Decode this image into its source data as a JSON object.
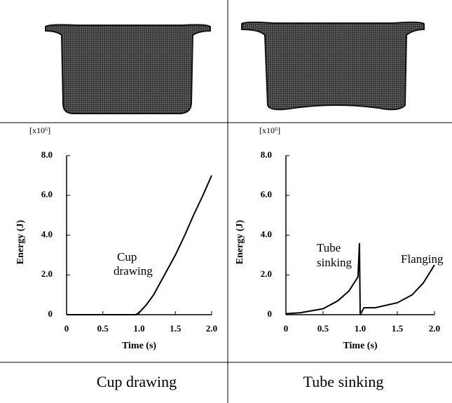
{
  "chart_data": [
    {
      "type": "line",
      "multiplier": "[x10⁶]",
      "xlabel": "Time (s)",
      "ylabel": "Energy (J)",
      "annotations": [
        [
          "Cup",
          "drawing"
        ]
      ],
      "x": [
        0,
        0.5,
        0.95,
        1.0,
        1.1,
        1.2,
        1.35,
        1.5,
        1.63,
        1.75,
        1.88,
        2.0
      ],
      "values": [
        0,
        0,
        0,
        0.1,
        0.5,
        1.0,
        2.0,
        3.0,
        4.0,
        5.0,
        6.0,
        7.0
      ],
      "color": "#000000",
      "xlim": [
        0,
        2
      ],
      "ylim": [
        0,
        8
      ],
      "xticks": [
        0,
        0.5,
        {
          "value": 1,
          "label": "1.0"
        },
        1.5,
        {
          "value": 2,
          "label": "2.0"
        }
      ],
      "yticks": [
        0,
        {
          "value": 2,
          "label": "2.0"
        },
        {
          "value": 4,
          "label": "4.0"
        },
        {
          "value": 6,
          "label": "6.0"
        },
        {
          "value": 8,
          "label": "8.0"
        }
      ]
    },
    {
      "type": "line",
      "multiplier": "[x10⁶]",
      "xlabel": "Time (s)",
      "ylabel": "Energy (J)",
      "annotations": [
        [
          "Tube",
          "sinking"
        ],
        [
          "Flanging"
        ]
      ],
      "x": [
        0,
        0.2,
        0.5,
        0.7,
        0.85,
        0.97,
        0.99,
        1.0,
        1.05,
        1.2,
        1.5,
        1.7,
        1.85,
        2.0
      ],
      "values": [
        0.05,
        0.1,
        0.3,
        0.7,
        1.2,
        1.9,
        3.6,
        0,
        0.35,
        0.35,
        0.6,
        1.0,
        1.6,
        2.5
      ],
      "color": "#000000",
      "xlim": [
        0,
        2
      ],
      "ylim": [
        0,
        8
      ],
      "xticks": [
        0,
        0.5,
        {
          "value": 1,
          "label": "1.0"
        },
        1.5,
        {
          "value": 2,
          "label": "2.0"
        }
      ],
      "yticks": [
        0,
        {
          "value": 2,
          "label": "2.0"
        },
        {
          "value": 4,
          "label": "4.0"
        },
        {
          "value": 6,
          "label": "6.0"
        },
        {
          "value": 8,
          "label": "8.0"
        }
      ]
    }
  ],
  "captions": [
    "Cup drawing",
    "Tube sinking"
  ]
}
